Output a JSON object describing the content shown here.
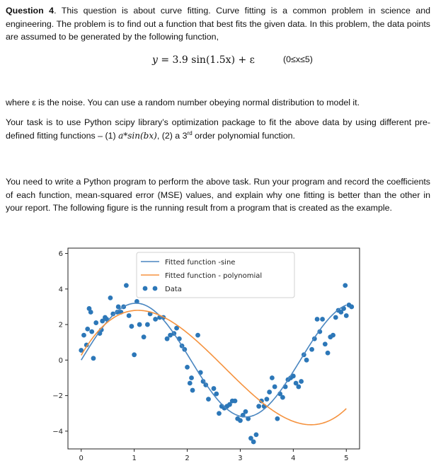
{
  "question": {
    "label": "Question 4",
    "intro_rest": ". This question is about curve fitting. Curve fitting is a common problem in science and engineering. The problem is to find out a function that best fits the given data. In this problem, the data points are assumed to be generated by the following function,"
  },
  "equation": {
    "lhs": "y",
    "rhs": " = 3.9 sin(1.5x) + ε",
    "range": "(0≤x≤5)"
  },
  "noise_note": "where ε is the noise. You can use a random number obeying normal distribution to model it.",
  "task": {
    "before": "Your task is to use Python scipy library’s optimization package to fit the above data by using different pre-defined fitting functions – (1) ",
    "fn1": "a*sin(b",
    "fn1_x": "x",
    "fn1_end": ")",
    "mid": ", (2) a 3",
    "sup": "rd",
    "after": " order polynomial function."
  },
  "instructions": "You need to write a Python program to perform the above task. Run your program and record the coefficients of each function, mean-squared error (MSE) values, and explain why one fitting is better than the other in your report. The following figure is the running result from a program that is created as the example.",
  "colors": {
    "sine": "#4a86c0",
    "poly": "#f5923e",
    "data": "#2c77b8"
  },
  "chart_data": {
    "type": "scatter",
    "xlim": [
      -0.25,
      5.25
    ],
    "ylim": [
      -5,
      6.3
    ],
    "xticks": [
      "0",
      "1",
      "2",
      "3",
      "4",
      "5"
    ],
    "yticks": [
      "6",
      "4",
      "2",
      "0",
      "−2",
      "−4"
    ],
    "legend_position": "upper-center",
    "series": [
      {
        "name": "Fitted function -sine",
        "kind": "line",
        "a": 3.2,
        "b": 1.52
      },
      {
        "name": "Fitted function - polynomial",
        "kind": "line",
        "coef": [
          0.27,
          5.15,
          -3.0,
          0.37
        ]
      },
      {
        "name": "Data",
        "kind": "scatter",
        "points": [
          [
            0.0,
            0.55
          ],
          [
            0.05,
            1.4
          ],
          [
            0.1,
            0.85
          ],
          [
            0.12,
            1.75
          ],
          [
            0.15,
            2.9
          ],
          [
            0.18,
            2.7
          ],
          [
            0.2,
            1.6
          ],
          [
            0.23,
            0.1
          ],
          [
            0.28,
            2.1
          ],
          [
            0.35,
            1.5
          ],
          [
            0.38,
            1.7
          ],
          [
            0.4,
            2.2
          ],
          [
            0.45,
            2.4
          ],
          [
            0.48,
            2.3
          ],
          [
            0.55,
            3.5
          ],
          [
            0.6,
            2.6
          ],
          [
            0.68,
            2.7
          ],
          [
            0.7,
            3.0
          ],
          [
            0.75,
            2.7
          ],
          [
            0.8,
            3.0
          ],
          [
            0.85,
            4.2
          ],
          [
            0.9,
            2.5
          ],
          [
            0.95,
            1.9
          ],
          [
            1.0,
            0.3
          ],
          [
            1.05,
            3.3
          ],
          [
            1.1,
            2.0
          ],
          [
            1.18,
            1.3
          ],
          [
            1.25,
            2.0
          ],
          [
            1.3,
            2.6
          ],
          [
            1.4,
            2.3
          ],
          [
            1.48,
            2.4
          ],
          [
            1.55,
            2.4
          ],
          [
            1.62,
            1.2
          ],
          [
            1.68,
            1.4
          ],
          [
            1.75,
            1.5
          ],
          [
            1.8,
            1.8
          ],
          [
            1.85,
            1.2
          ],
          [
            1.9,
            0.8
          ],
          [
            1.95,
            0.6
          ],
          [
            2.0,
            -0.4
          ],
          [
            2.05,
            -1.3
          ],
          [
            2.08,
            -1.0
          ],
          [
            2.1,
            -1.7
          ],
          [
            2.2,
            1.4
          ],
          [
            2.25,
            -0.7
          ],
          [
            2.3,
            -1.2
          ],
          [
            2.35,
            -1.4
          ],
          [
            2.4,
            -2.2
          ],
          [
            2.5,
            -1.6
          ],
          [
            2.55,
            -1.9
          ],
          [
            2.6,
            -3.0
          ],
          [
            2.65,
            -2.6
          ],
          [
            2.7,
            -2.7
          ],
          [
            2.75,
            -2.6
          ],
          [
            2.8,
            -2.5
          ],
          [
            2.85,
            -2.3
          ],
          [
            2.9,
            -2.3
          ],
          [
            2.95,
            -3.3
          ],
          [
            3.0,
            -3.4
          ],
          [
            3.05,
            -3.1
          ],
          [
            3.1,
            -2.9
          ],
          [
            3.15,
            -3.3
          ],
          [
            3.2,
            -4.4
          ],
          [
            3.25,
            -4.6
          ],
          [
            3.3,
            -4.2
          ],
          [
            3.35,
            -2.6
          ],
          [
            3.4,
            -2.3
          ],
          [
            3.45,
            -2.6
          ],
          [
            3.5,
            -2.2
          ],
          [
            3.55,
            -1.8
          ],
          [
            3.6,
            -1.0
          ],
          [
            3.65,
            -1.5
          ],
          [
            3.7,
            -3.3
          ],
          [
            3.75,
            -1.9
          ],
          [
            3.8,
            -2.1
          ],
          [
            3.85,
            -1.5
          ],
          [
            3.9,
            -1.1
          ],
          [
            3.95,
            -1.0
          ],
          [
            4.0,
            -0.9
          ],
          [
            4.05,
            -1.3
          ],
          [
            4.1,
            -1.5
          ],
          [
            4.15,
            -1.2
          ],
          [
            4.2,
            0.3
          ],
          [
            4.25,
            0.0
          ],
          [
            4.35,
            0.6
          ],
          [
            4.4,
            1.2
          ],
          [
            4.45,
            2.3
          ],
          [
            4.5,
            1.6
          ],
          [
            4.55,
            2.3
          ],
          [
            4.6,
            0.9
          ],
          [
            4.65,
            0.4
          ],
          [
            4.7,
            1.3
          ],
          [
            4.75,
            1.4
          ],
          [
            4.8,
            2.4
          ],
          [
            4.85,
            2.8
          ],
          [
            4.9,
            2.7
          ],
          [
            4.95,
            2.9
          ],
          [
            5.0,
            2.5
          ],
          [
            5.05,
            3.1
          ],
          [
            5.1,
            3.0
          ],
          [
            4.98,
            4.2
          ]
        ]
      }
    ]
  }
}
